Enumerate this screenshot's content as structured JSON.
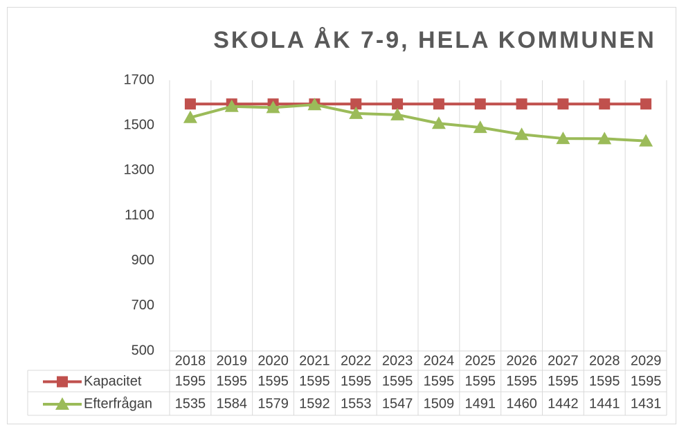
{
  "chart_data": {
    "type": "line",
    "title": "SKOLA ÅK 7-9, HELA KOMMUNEN",
    "categories": [
      "2018",
      "2019",
      "2020",
      "2021",
      "2022",
      "2023",
      "2024",
      "2025",
      "2026",
      "2027",
      "2028",
      "2029"
    ],
    "series": [
      {
        "name": "Kapacitet",
        "color": "#c0504d",
        "marker": "square",
        "values": [
          1595,
          1595,
          1595,
          1595,
          1595,
          1595,
          1595,
          1595,
          1595,
          1595,
          1595,
          1595
        ]
      },
      {
        "name": "Efterfrågan",
        "color": "#9bbb59",
        "marker": "triangle",
        "values": [
          1535,
          1584,
          1579,
          1592,
          1553,
          1547,
          1509,
          1491,
          1460,
          1442,
          1441,
          1431
        ]
      }
    ],
    "ylim": [
      500,
      1700
    ],
    "yticks": [
      500,
      700,
      900,
      1100,
      1300,
      1500,
      1700
    ],
    "grid": "vertical",
    "data_table": true
  }
}
